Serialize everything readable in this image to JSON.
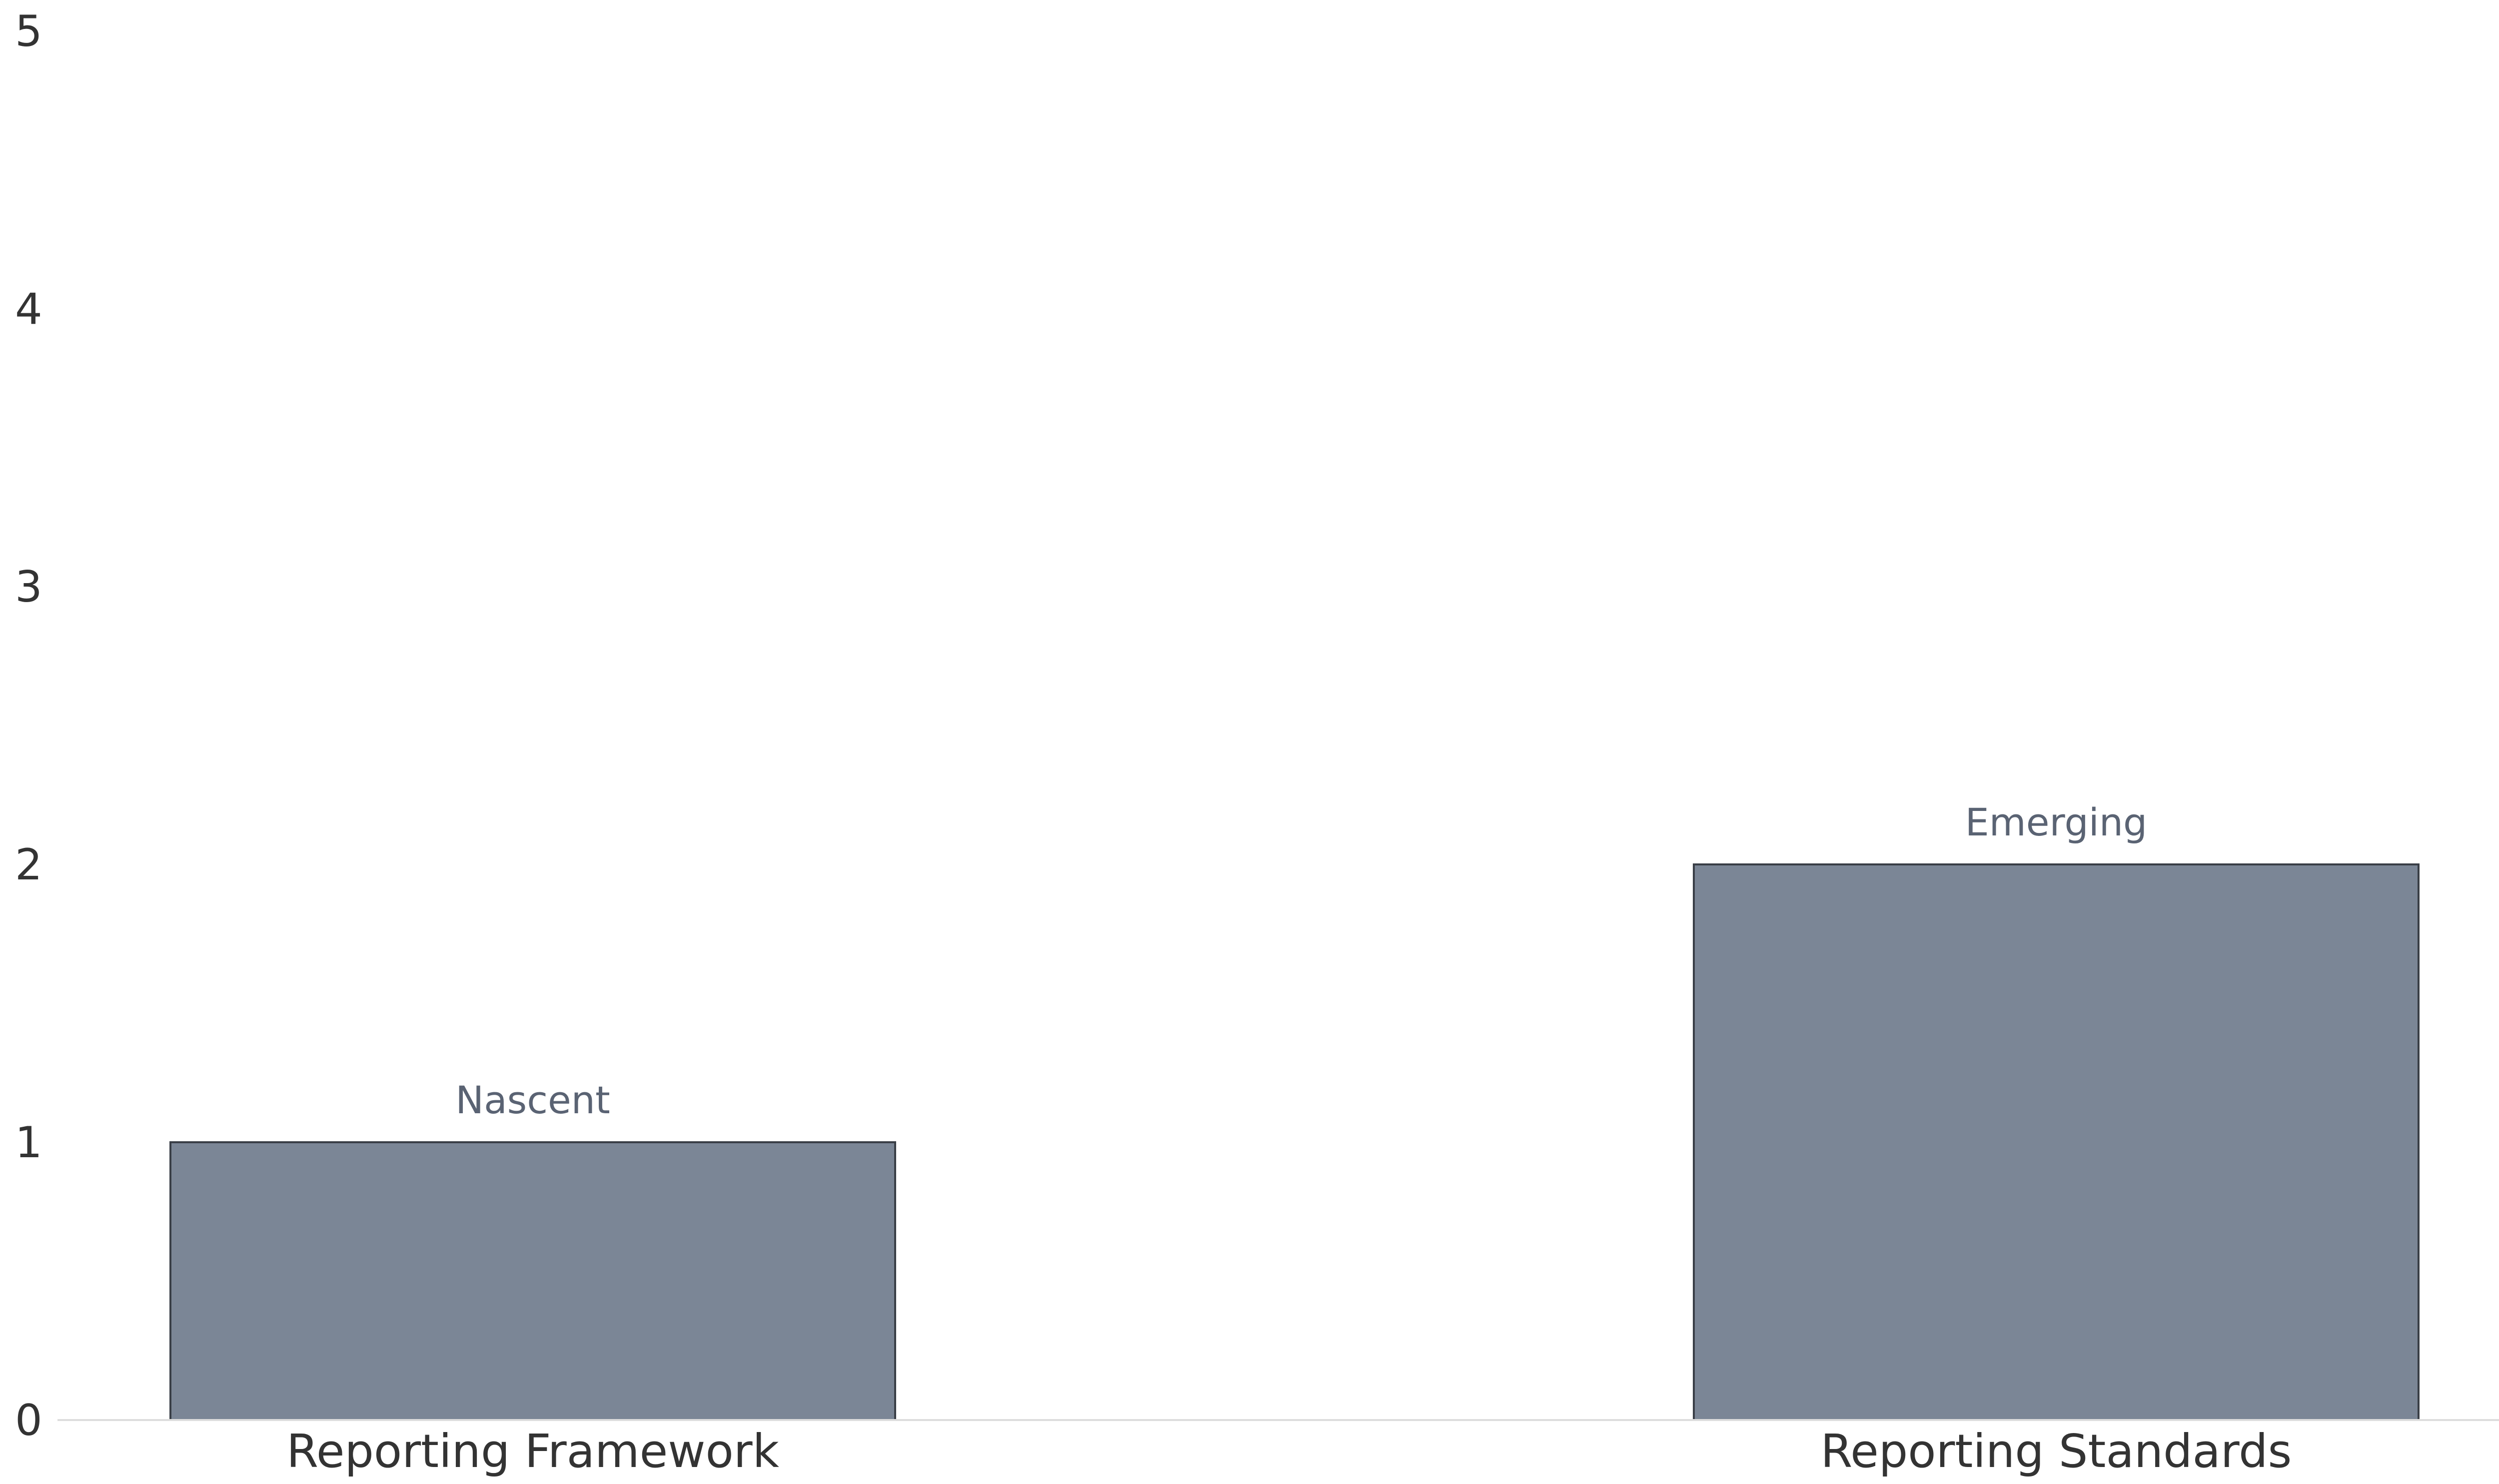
{
  "chart_data": {
    "type": "bar",
    "categories": [
      "Reporting Framework",
      "Reporting Standards"
    ],
    "values": [
      1,
      2
    ],
    "data_labels": [
      "Nascent",
      "Emerging"
    ],
    "ylim": [
      0,
      5
    ],
    "yticks": [
      0,
      1,
      2,
      3,
      4,
      5
    ],
    "grid": false,
    "legend": "none",
    "bar_color": "#7b8696",
    "bar_edge_color": "#3a3f47"
  }
}
